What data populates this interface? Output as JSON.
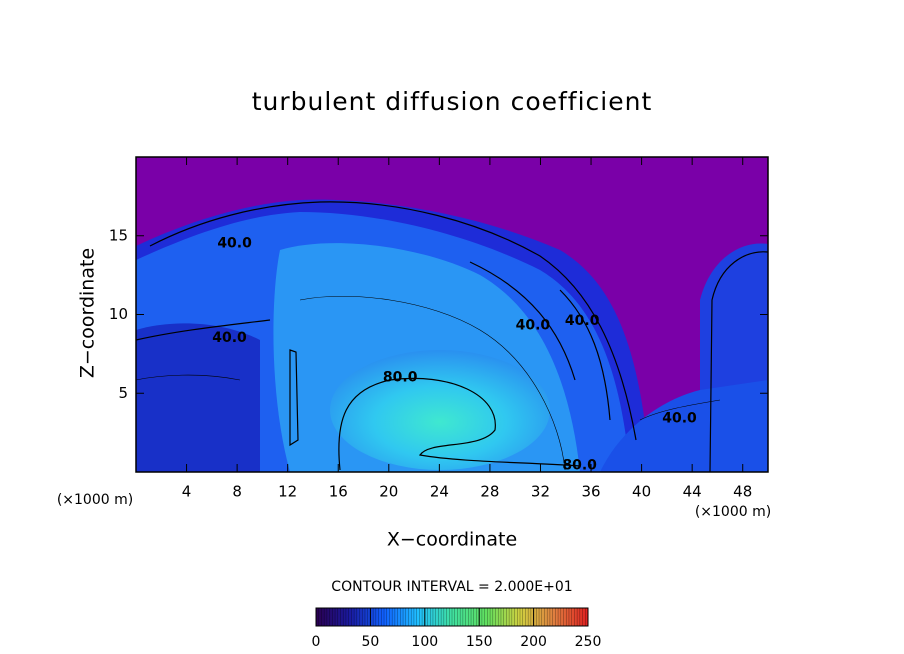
{
  "chart_data": {
    "type": "contour",
    "title": "turbulent diffusion coefficient",
    "x_label": "X−coordinate",
    "y_label": "Z−coordinate",
    "x_unit_left": "(×1000 m)",
    "x_unit_right": "(×1000 m)",
    "xlim": [
      0,
      50
    ],
    "ylim": [
      0,
      20
    ],
    "xticks": [
      4,
      8,
      12,
      16,
      20,
      24,
      28,
      32,
      36,
      40,
      44,
      48
    ],
    "yticks": [
      5,
      10,
      15
    ],
    "contour_interval": "CONTOUR INTERVAL = 2.000E+01",
    "contour_labels": [
      {
        "text": "40.0",
        "x": 7.8,
        "y": 14.5
      },
      {
        "text": "40.0",
        "x": 7.4,
        "y": 8.5
      },
      {
        "text": "80.0",
        "x": 20.9,
        "y": 6.0
      },
      {
        "text": "40.0",
        "x": 31.4,
        "y": 9.3
      },
      {
        "text": "40.0",
        "x": 35.3,
        "y": 9.6
      },
      {
        "text": "80.0",
        "x": 35.1,
        "y": 0.4
      },
      {
        "text": "40.0",
        "x": 43.0,
        "y": 3.4
      }
    ],
    "colorbar": {
      "lim": [
        0,
        250
      ],
      "ticks": [
        0,
        50,
        100,
        150,
        200,
        250
      ],
      "colors": [
        "#2a0050",
        "#1a1aa0",
        "#1060ff",
        "#20c0ff",
        "#40e0a0",
        "#60e060",
        "#d0d040",
        "#e08040",
        "#e02020"
      ]
    }
  }
}
